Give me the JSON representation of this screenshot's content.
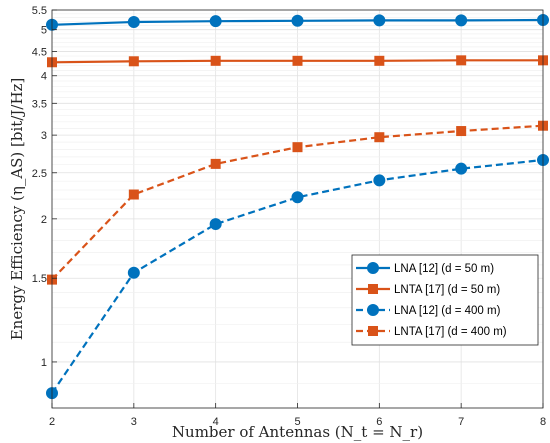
{
  "chart_data": {
    "type": "line",
    "title": "",
    "xlabel": "Number of Antennas (N_t = N_r)",
    "ylabel": "Energy Efficiency (η_AS) [bit/J/Hz]",
    "x": [
      2,
      3,
      4,
      5,
      6,
      7,
      8
    ],
    "xlim": [
      2,
      8
    ],
    "ylim": [
      0.8,
      5.5
    ],
    "yscale": "log",
    "xticks": [
      "2",
      "3",
      "4",
      "5",
      "6",
      "7",
      "8"
    ],
    "yticks": [
      {
        "value": 1,
        "label": "1"
      },
      {
        "value": 1.5,
        "label": "1.5"
      },
      {
        "value": 2,
        "label": "2"
      },
      {
        "value": 2.5,
        "label": "2.5"
      },
      {
        "value": 3,
        "label": "3"
      },
      {
        "value": 3.5,
        "label": "3.5"
      },
      {
        "value": 4,
        "label": "4"
      },
      {
        "value": 4.5,
        "label": "4.5"
      },
      {
        "value": 5,
        "label": "5"
      },
      {
        "value": 5.5,
        "label": "5.5"
      }
    ],
    "grid": true,
    "legend_position": "bottom-right",
    "series": [
      {
        "name": "LNA [12] (d = 50 m)",
        "values": [
          5.12,
          5.19,
          5.21,
          5.22,
          5.23,
          5.23,
          5.24
        ],
        "color": "#0072bd",
        "style": "solid",
        "marker": "circle"
      },
      {
        "name": "LNTA [17] (d = 50 m)",
        "values": [
          4.27,
          4.29,
          4.3,
          4.3,
          4.3,
          4.31,
          4.31
        ],
        "color": "#d95319",
        "style": "solid",
        "marker": "square"
      },
      {
        "name": "LNA [12] (d = 400 m)",
        "values": [
          0.86,
          1.54,
          1.95,
          2.22,
          2.41,
          2.55,
          2.66
        ],
        "color": "#0072bd",
        "style": "dashed",
        "marker": "circle"
      },
      {
        "name": "LNTA [17] (d = 400 m)",
        "values": [
          1.49,
          2.25,
          2.61,
          2.83,
          2.97,
          3.06,
          3.14
        ],
        "color": "#d95319",
        "style": "dashed",
        "marker": "square"
      }
    ]
  }
}
